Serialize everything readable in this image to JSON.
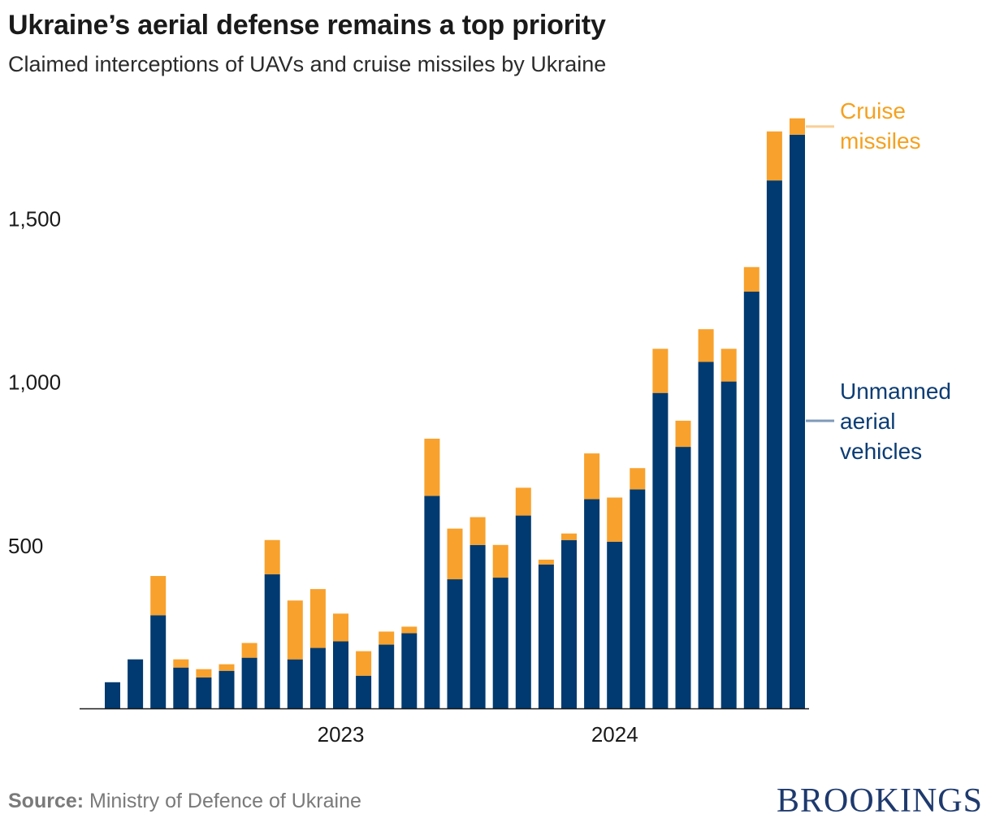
{
  "title": "Ukraine’s aerial defense remains a top priority",
  "subtitle": "Claimed interceptions of UAVs and cruise missiles by Ukraine",
  "source_label": "Source:",
  "source_text": "Ministry of Defence of Ukraine",
  "logo_text": "BROOKINGS",
  "colors": {
    "uav": "#003a70",
    "cruise": "#f8a12c",
    "uav_leader": "#7f9ab8",
    "cruise_leader": "#f9cf96",
    "axis": "#1a1a1a"
  },
  "chart_data": {
    "type": "bar",
    "stacked": true,
    "ylim": [
      0,
      1800
    ],
    "y_ticks": [
      {
        "value": 500,
        "label": "500"
      },
      {
        "value": 1000,
        "label": "1,000"
      },
      {
        "value": 1500,
        "label": "1,500"
      }
    ],
    "x_ticks": [
      {
        "index": 10.5,
        "label": "2023"
      },
      {
        "index": 22.5,
        "label": "2024"
      }
    ],
    "grid": false,
    "series": [
      {
        "name": "Unmanned\naerial\nvehicles",
        "key": "uav",
        "values": [
          80,
          150,
          285,
          125,
          95,
          115,
          155,
          410,
          150,
          185,
          205,
          100,
          195,
          230,
          650,
          395,
          500,
          400,
          590,
          440,
          515,
          640,
          510,
          670,
          965,
          800,
          1060,
          1000,
          1275,
          1615,
          1755
        ]
      },
      {
        "name": "Cruise\nmissiles",
        "key": "cruise",
        "values": [
          0,
          0,
          120,
          25,
          25,
          20,
          45,
          105,
          180,
          180,
          85,
          75,
          40,
          20,
          175,
          155,
          85,
          100,
          85,
          15,
          20,
          140,
          135,
          65,
          135,
          80,
          100,
          100,
          75,
          150,
          50
        ]
      }
    ]
  }
}
